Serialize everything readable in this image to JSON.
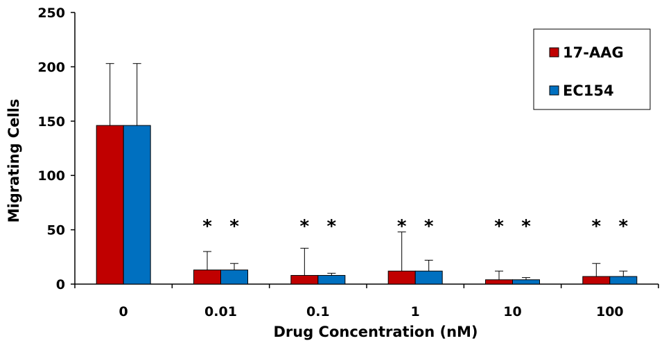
{
  "chart_data": {
    "type": "bar",
    "title": "",
    "xlabel": "Drug Concentration  (nM)",
    "ylabel": "Migrating Cells",
    "ylim": [
      0,
      250
    ],
    "yticks": [
      "0",
      "50",
      "100",
      "150",
      "200",
      "250"
    ],
    "categories": [
      "0",
      "0.01",
      "0.1",
      "1",
      "10",
      "100"
    ],
    "grid": false,
    "legend_position": "top-right",
    "series": [
      {
        "name": "17-AAG",
        "color": "#c00000",
        "values": [
          146,
          13,
          8,
          12,
          4,
          7
        ],
        "error_upper": [
          57,
          17,
          25,
          36,
          8,
          12
        ],
        "significance": [
          "",
          "*",
          "*",
          "*",
          "*",
          "*"
        ]
      },
      {
        "name": "EC154",
        "color": "#0070c0",
        "values": [
          146,
          13,
          8,
          12,
          4,
          7
        ],
        "error_upper": [
          57,
          6,
          2,
          10,
          2,
          5
        ],
        "significance": [
          "",
          "*",
          "*",
          "*",
          "*",
          "*"
        ]
      }
    ]
  }
}
